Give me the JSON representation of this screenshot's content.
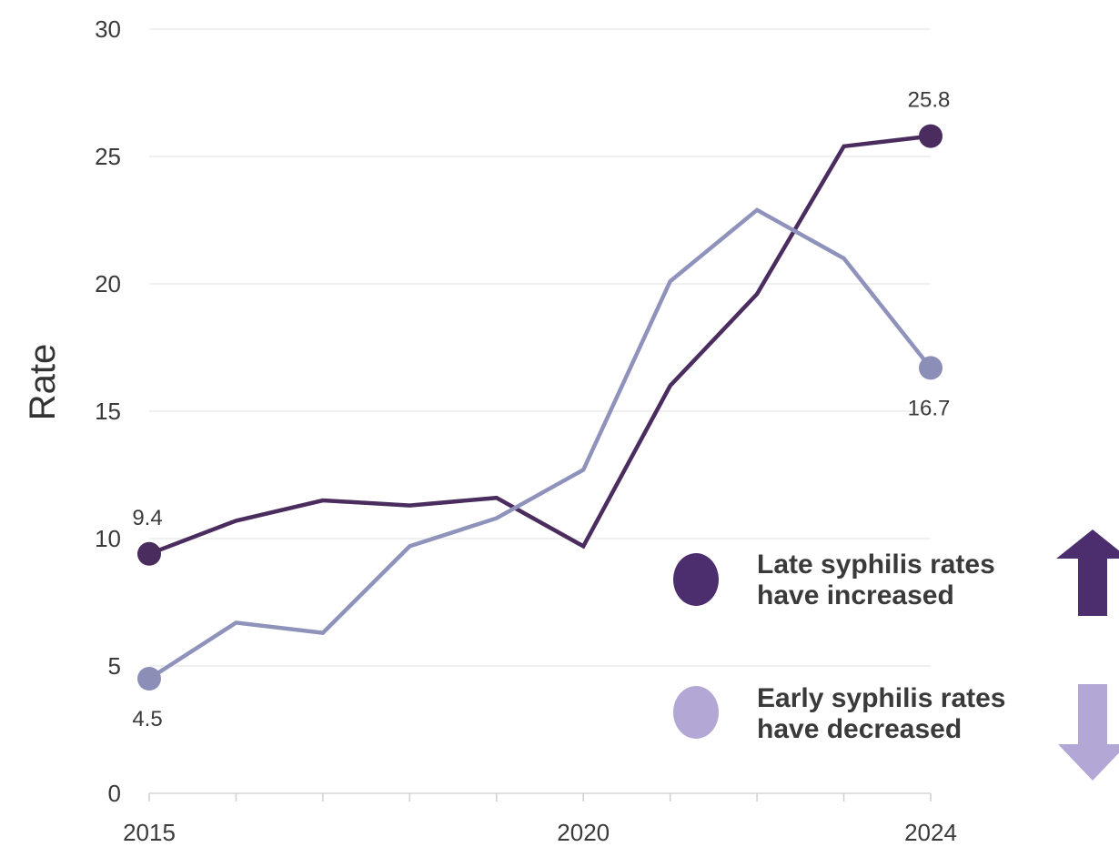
{
  "chart_data": {
    "type": "line",
    "ylabel": "Rate",
    "xlabel": "",
    "ylim": [
      0,
      30
    ],
    "yticks": [
      0,
      5,
      10,
      15,
      20,
      25,
      30
    ],
    "xlim": [
      2015,
      2024
    ],
    "xtick_labels": [
      {
        "value": 2015,
        "label": "2015"
      },
      {
        "value": 2020,
        "label": "2020"
      },
      {
        "value": 2024,
        "label": "2024"
      }
    ],
    "minor_xticks": [
      2016,
      2017,
      2018,
      2019,
      2021,
      2022,
      2023
    ],
    "grid": "horizontal",
    "series": [
      {
        "key": "late",
        "color": "#4a2c5e",
        "x": [
          2015,
          2016,
          2017,
          2018,
          2019,
          2020,
          2021,
          2022,
          2023,
          2024
        ],
        "values": [
          9.4,
          10.7,
          11.5,
          11.3,
          11.6,
          9.7,
          16.0,
          19.6,
          25.4,
          25.8
        ]
      },
      {
        "key": "early",
        "color": "#8f93bb",
        "x": [
          2015,
          2016,
          2017,
          2018,
          2019,
          2020,
          2021,
          2022,
          2023,
          2024
        ],
        "values": [
          4.5,
          6.7,
          6.3,
          9.7,
          10.8,
          12.7,
          20.1,
          22.9,
          21.0,
          16.7
        ]
      }
    ],
    "data_labels": [
      {
        "series": "late",
        "x": 2015,
        "text": "9.4",
        "placement": "above"
      },
      {
        "series": "late",
        "x": 2024,
        "text": "25.8",
        "placement": "above"
      },
      {
        "series": "early",
        "x": 2015,
        "text": "4.5",
        "placement": "below"
      },
      {
        "series": "early",
        "x": 2024,
        "text": "16.7",
        "placement": "below"
      }
    ],
    "endpoint_colors": {
      "late": "#4a2c5e",
      "early": "#8b8fb8"
    },
    "legend": {
      "placement": "bottom-right",
      "items": [
        {
          "key": "late",
          "dot_color": "#4c2e6e",
          "arrow": "up",
          "arrow_color": "#4c2e6e",
          "lines": [
            "Late syphilis rates",
            "have increased"
          ]
        },
        {
          "key": "early",
          "dot_color": "#b3a7d6",
          "arrow": "down",
          "arrow_color": "#b3a7d6",
          "lines": [
            "Early syphilis rates",
            "have decreased"
          ]
        }
      ]
    }
  }
}
